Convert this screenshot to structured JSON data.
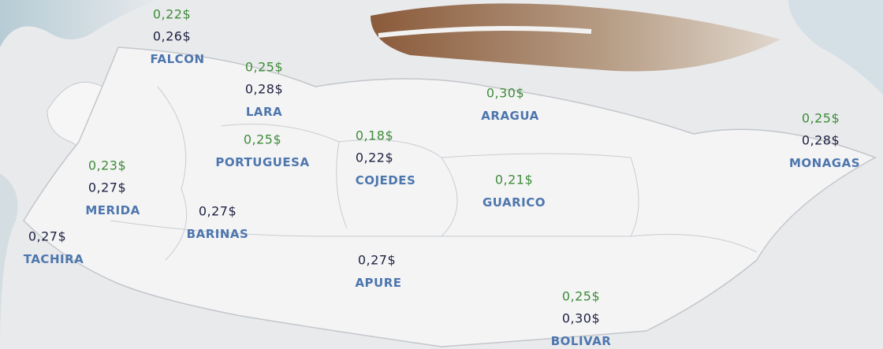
{
  "regions": [
    {
      "name": "FALCON",
      "prices": [
        {
          "text": "0,22$",
          "color": "#3f8c3a"
        },
        {
          "text": "0,26$",
          "color": "#1e2140"
        }
      ]
    },
    {
      "name": "LARA",
      "prices": [
        {
          "text": "0,25$",
          "color": "#3f8c3a"
        },
        {
          "text": "0,28$",
          "color": "#1e2140"
        }
      ]
    },
    {
      "name": "ARAGUA",
      "prices": [
        {
          "text": "0,30$",
          "color": "#3f8c3a"
        }
      ]
    },
    {
      "name": "PORTUGUESA",
      "prices": [
        {
          "text": "0,25$",
          "color": "#3f8c3a"
        }
      ]
    },
    {
      "name": "COJEDES",
      "prices": [
        {
          "text": "0,18$",
          "color": "#3f8c3a"
        },
        {
          "text": "0,22$",
          "color": "#1e2140"
        }
      ]
    },
    {
      "name": "GUARICO",
      "prices": [
        {
          "text": "0,21$",
          "color": "#3f8c3a"
        }
      ]
    },
    {
      "name": "MONAGAS",
      "prices": [
        {
          "text": "0,25$",
          "color": "#3f8c3a"
        },
        {
          "text": "0,28$",
          "color": "#1e2140"
        }
      ]
    },
    {
      "name": "MERIDA",
      "prices": [
        {
          "text": "0,23$",
          "color": "#3f8c3a"
        },
        {
          "text": "0,27$",
          "color": "#1e2140"
        }
      ]
    },
    {
      "name": "BARINAS",
      "prices": [
        {
          "text": "0,27$",
          "color": "#1e2140"
        }
      ]
    },
    {
      "name": "TACHIRA",
      "prices": [
        {
          "text": "0,27$",
          "color": "#1e2140"
        }
      ]
    },
    {
      "name": "APURE",
      "prices": [
        {
          "text": "0,27$",
          "color": "#1e2140"
        }
      ]
    },
    {
      "name": "BOLIVAR",
      "prices": [
        {
          "text": "0,25$",
          "color": "#3f8c3a"
        },
        {
          "text": "0,30$",
          "color": "#1e2140"
        }
      ]
    }
  ]
}
